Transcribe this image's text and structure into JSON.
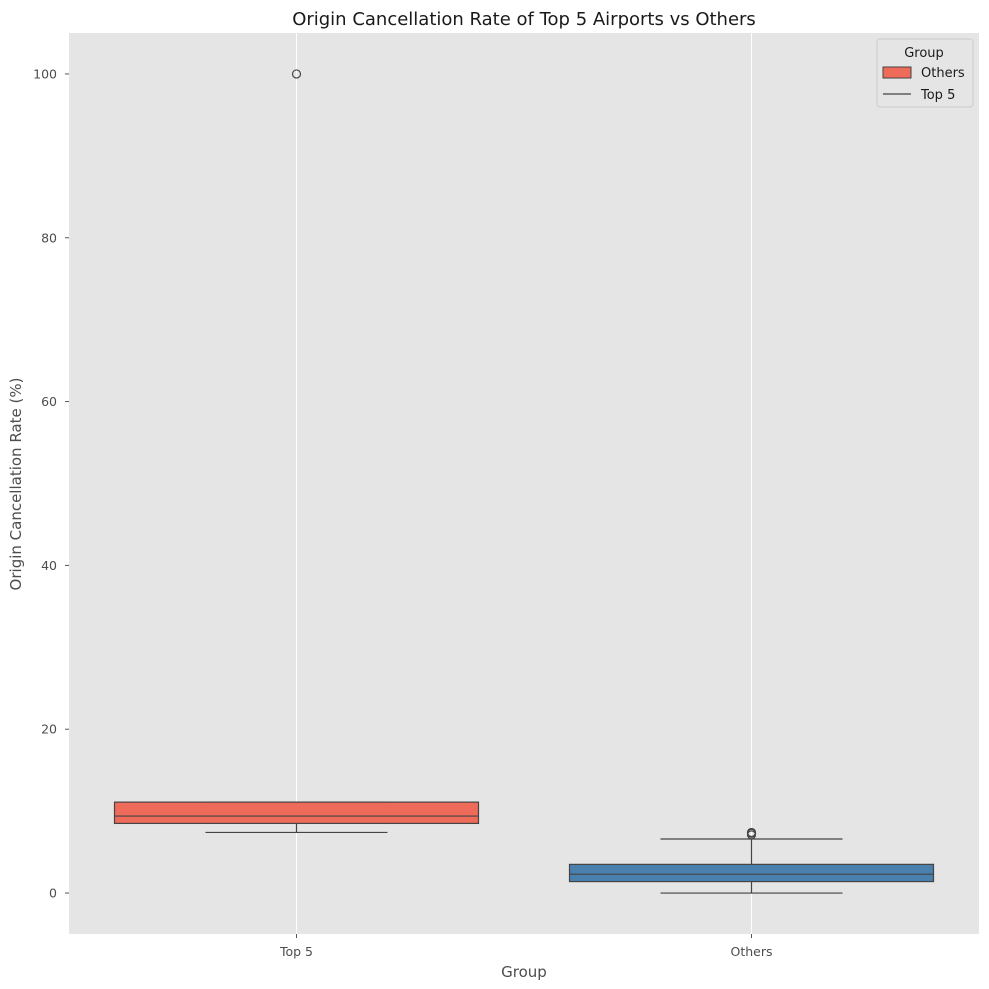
{
  "chart_data": {
    "type": "box",
    "title": "Origin Cancellation Rate of Top 5 Airports vs Others",
    "xlabel": "Group",
    "ylabel": "Origin Cancellation Rate (%)",
    "categories": [
      "Top 5",
      "Others"
    ],
    "ylim": [
      -5,
      105
    ],
    "yticks": [
      0,
      20,
      40,
      60,
      80,
      100
    ],
    "grid": true,
    "legend": {
      "title": "Group",
      "position": "top-right",
      "entries": [
        {
          "label": "Others",
          "kind": "patch"
        },
        {
          "label": "Top 5",
          "kind": "line"
        }
      ]
    },
    "series": [
      {
        "category": "Top 5",
        "color": "#ee6a59",
        "whisker_low": 7.4,
        "q1": 8.5,
        "median": 9.4,
        "q3": 11.1,
        "whisker_high": 11.1,
        "outliers": [
          100
        ]
      },
      {
        "category": "Others",
        "color": "#4a80ae",
        "whisker_low": 0,
        "q1": 1.4,
        "median": 2.3,
        "q3": 3.5,
        "whisker_high": 6.6,
        "outliers": [
          7.1,
          7.3,
          7.4
        ]
      }
    ],
    "colors": {
      "background": "#e5e5e5",
      "grid": "#ffffff",
      "edge": "#444444"
    }
  }
}
